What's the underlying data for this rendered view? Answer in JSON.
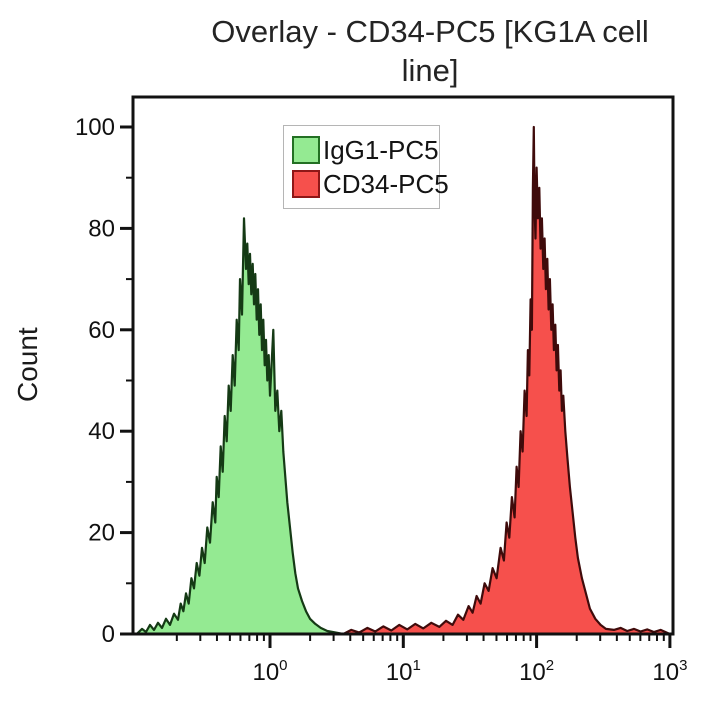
{
  "title_lines": [
    "Overlay - CD34-PC5 [KG1A cell",
    "line]"
  ],
  "chart_data": {
    "type": "area",
    "subtype": "flow_cytometry_overlay_histogram",
    "title": "Overlay - CD34-PC5 [KG1A cell line]",
    "xlabel": "",
    "ylabel": "Count",
    "x_scale": "log10",
    "xlim_log10": [
      -1.03,
      3.02
    ],
    "x_decades": [
      0,
      1,
      2,
      3
    ],
    "x_tick_base": "10",
    "x_tick_exponents": [
      "0",
      "1",
      "2",
      "3"
    ],
    "ylim": [
      0,
      106
    ],
    "y_ticks": [
      0,
      20,
      40,
      60,
      80,
      100
    ],
    "y_minor_ticks": [
      10,
      30,
      50,
      70,
      90
    ],
    "grid": false,
    "frame_color": "#111111",
    "tick_color": "#111111",
    "legend": {
      "position": "upper-left-inside",
      "border_color": "#b5b5b5",
      "background": "#ffffff"
    },
    "series": [
      {
        "name": "IgG1-PC5",
        "role": "isotype-control",
        "fill": "#94ea92",
        "stroke": "#153a15",
        "swatch_border": "#237023",
        "peak_log10x": -0.2,
        "peak_count": 82,
        "points": [
          [
            -1.0,
            0
          ],
          [
            -0.96,
            1
          ],
          [
            -0.93,
            0.4
          ],
          [
            -0.9,
            1.8
          ],
          [
            -0.87,
            0.8
          ],
          [
            -0.84,
            2.2
          ],
          [
            -0.81,
            1.2
          ],
          [
            -0.78,
            3
          ],
          [
            -0.75,
            1.8
          ],
          [
            -0.72,
            4
          ],
          [
            -0.69,
            2.8
          ],
          [
            -0.67,
            6
          ],
          [
            -0.65,
            4.5
          ],
          [
            -0.63,
            8
          ],
          [
            -0.61,
            6
          ],
          [
            -0.59,
            11
          ],
          [
            -0.57,
            9
          ],
          [
            -0.55,
            14
          ],
          [
            -0.53,
            11.5
          ],
          [
            -0.51,
            17
          ],
          [
            -0.49,
            14
          ],
          [
            -0.47,
            21
          ],
          [
            -0.45,
            18
          ],
          [
            -0.43,
            26
          ],
          [
            -0.41,
            22
          ],
          [
            -0.4,
            31
          ],
          [
            -0.385,
            27
          ],
          [
            -0.37,
            37
          ],
          [
            -0.355,
            32
          ],
          [
            -0.34,
            43
          ],
          [
            -0.325,
            38
          ],
          [
            -0.31,
            49
          ],
          [
            -0.295,
            44
          ],
          [
            -0.28,
            55
          ],
          [
            -0.265,
            49
          ],
          [
            -0.25,
            62
          ],
          [
            -0.235,
            56
          ],
          [
            -0.225,
            70
          ],
          [
            -0.21,
            63
          ],
          [
            -0.195,
            82
          ],
          [
            -0.18,
            72
          ],
          [
            -0.17,
            77
          ],
          [
            -0.16,
            69
          ],
          [
            -0.15,
            75
          ],
          [
            -0.14,
            67
          ],
          [
            -0.13,
            73
          ],
          [
            -0.12,
            65
          ],
          [
            -0.11,
            71
          ],
          [
            -0.1,
            62
          ],
          [
            -0.09,
            68
          ],
          [
            -0.08,
            59
          ],
          [
            -0.07,
            65
          ],
          [
            -0.06,
            56
          ],
          [
            -0.05,
            62
          ],
          [
            -0.04,
            53
          ],
          [
            -0.03,
            58
          ],
          [
            -0.02,
            50
          ],
          [
            -0.01,
            55
          ],
          [
            0.0,
            47
          ],
          [
            0.01,
            52
          ],
          [
            0.025,
            60
          ],
          [
            0.04,
            44
          ],
          [
            0.055,
            48
          ],
          [
            0.07,
            40
          ],
          [
            0.085,
            44
          ],
          [
            0.1,
            36
          ],
          [
            0.115,
            31
          ],
          [
            0.13,
            26
          ],
          [
            0.15,
            21
          ],
          [
            0.17,
            16
          ],
          [
            0.19,
            12
          ],
          [
            0.21,
            9
          ],
          [
            0.24,
            6.5
          ],
          [
            0.27,
            4.5
          ],
          [
            0.3,
            3
          ],
          [
            0.34,
            2
          ],
          [
            0.38,
            1.2
          ],
          [
            0.43,
            0.6
          ],
          [
            0.49,
            0.3
          ],
          [
            0.55,
            0
          ]
        ]
      },
      {
        "name": "CD34-PC5",
        "role": "stained-sample",
        "fill": "#f6504c",
        "stroke": "#3f0b0b",
        "swatch_border": "#8e1717",
        "peak_log10x": 1.98,
        "peak_count": 100,
        "points": [
          [
            0.55,
            0
          ],
          [
            0.61,
            0.8
          ],
          [
            0.67,
            0.3
          ],
          [
            0.73,
            1.2
          ],
          [
            0.79,
            0.5
          ],
          [
            0.85,
            1.5
          ],
          [
            0.91,
            0.7
          ],
          [
            0.97,
            1.8
          ],
          [
            1.03,
            0.9
          ],
          [
            1.09,
            2
          ],
          [
            1.15,
            1.1
          ],
          [
            1.21,
            2.2
          ],
          [
            1.27,
            1.4
          ],
          [
            1.32,
            2.6
          ],
          [
            1.37,
            1.8
          ],
          [
            1.41,
            3.8
          ],
          [
            1.45,
            2.8
          ],
          [
            1.49,
            5.5
          ],
          [
            1.52,
            4.2
          ],
          [
            1.55,
            7.5
          ],
          [
            1.58,
            6
          ],
          [
            1.61,
            10
          ],
          [
            1.64,
            8.5
          ],
          [
            1.67,
            13
          ],
          [
            1.7,
            11
          ],
          [
            1.73,
            17
          ],
          [
            1.755,
            14.5
          ],
          [
            1.775,
            22
          ],
          [
            1.795,
            19
          ],
          [
            1.815,
            27
          ],
          [
            1.835,
            23
          ],
          [
            1.85,
            33
          ],
          [
            1.865,
            29
          ],
          [
            1.88,
            40
          ],
          [
            1.895,
            36
          ],
          [
            1.91,
            48
          ],
          [
            1.925,
            43
          ],
          [
            1.935,
            56
          ],
          [
            1.945,
            51
          ],
          [
            1.955,
            66
          ],
          [
            1.965,
            60
          ],
          [
            1.972,
            88
          ],
          [
            1.979,
            100
          ],
          [
            1.985,
            84
          ],
          [
            1.992,
            78
          ],
          [
            2.0,
            92
          ],
          [
            2.01,
            82
          ],
          [
            2.02,
            88
          ],
          [
            2.03,
            76
          ],
          [
            2.04,
            82
          ],
          [
            2.05,
            72
          ],
          [
            2.06,
            78
          ],
          [
            2.07,
            68
          ],
          [
            2.08,
            74
          ],
          [
            2.09,
            64
          ],
          [
            2.1,
            70
          ],
          [
            2.11,
            60
          ],
          [
            2.12,
            65
          ],
          [
            2.13,
            56
          ],
          [
            2.14,
            61
          ],
          [
            2.15,
            52
          ],
          [
            2.16,
            57
          ],
          [
            2.17,
            48
          ],
          [
            2.18,
            52
          ],
          [
            2.19,
            44
          ],
          [
            2.2,
            47
          ],
          [
            2.215,
            40
          ],
          [
            2.23,
            35
          ],
          [
            2.25,
            29
          ],
          [
            2.27,
            24
          ],
          [
            2.29,
            19
          ],
          [
            2.31,
            15
          ],
          [
            2.34,
            11
          ],
          [
            2.37,
            8
          ],
          [
            2.4,
            5
          ],
          [
            2.44,
            3
          ],
          [
            2.48,
            1.8
          ],
          [
            2.52,
            1
          ],
          [
            2.58,
            0.8
          ],
          [
            2.63,
            1.2
          ],
          [
            2.68,
            0.6
          ],
          [
            2.73,
            1
          ],
          [
            2.78,
            0.5
          ],
          [
            2.83,
            0.9
          ],
          [
            2.88,
            0.4
          ],
          [
            2.93,
            0.8
          ],
          [
            3.0,
            0
          ]
        ]
      }
    ]
  }
}
